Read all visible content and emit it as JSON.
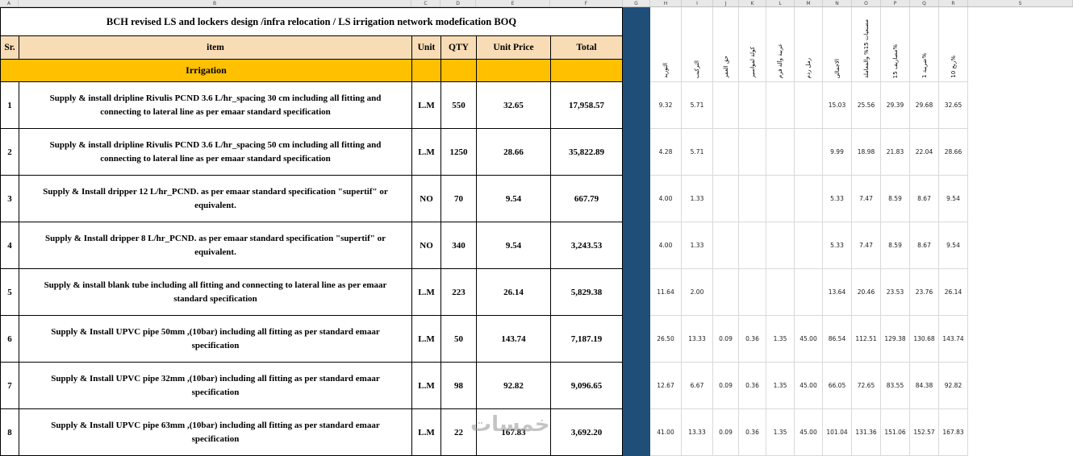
{
  "sheet": {
    "column_letters": [
      "A",
      "B",
      "C",
      "D",
      "E",
      "F",
      "G",
      "H",
      "I",
      "J",
      "K",
      "L",
      "M",
      "N",
      "O",
      "P",
      "Q",
      "R",
      "S"
    ],
    "title": "BCH revised LS and lockers design /infra relocation /  LS irrigation network modefication BOQ",
    "columns": {
      "sr": "Sr.",
      "item": "item",
      "unit": "Unit",
      "qty": "QTY",
      "unit_price": "Unit Price",
      "total": "Total"
    },
    "section_label": "Irrigation",
    "breakdown_headers": [
      "التوريد",
      "التركيب",
      "حق العمر",
      "كولة لمواسير",
      "عربية وآلة فرم",
      "رمل ردم",
      "الاجمالى",
      "مصنعيات 15% والمعاملة",
      "مصاريف 15%",
      "ضريبة 1%",
      "ربح 10%"
    ],
    "rows": [
      {
        "sr": "1",
        "item": "Supply & install  dripline  Rivulis PCND  3.6 L/hr_spacing 30 cm including all fitting and connecting to lateral line as per  emaar standard specification",
        "unit": "L.M",
        "qty": "550",
        "unit_price": "32.65",
        "total": "17,958.57",
        "breakdown": [
          "9.32",
          "5.71",
          "",
          "",
          "",
          "",
          "15.03",
          "25.56",
          "29.39",
          "29.68",
          "32.65"
        ]
      },
      {
        "sr": "2",
        "item": "Supply & install  dripline  Rivulis PCND  3.6 L/hr_spacing 50 cm including all fitting and connecting to lateral line as per  emaar standard specification",
        "unit": "L.M",
        "qty": "1250",
        "unit_price": "28.66",
        "total": "35,822.89",
        "breakdown": [
          "4.28",
          "5.71",
          "",
          "",
          "",
          "",
          "9.99",
          "18.98",
          "21.83",
          "22.04",
          "28.66"
        ]
      },
      {
        "sr": "3",
        "item": "Supply & Install dripper 12 L/hr_PCND. as per emaar standard specification \"supertif\" or equivalent.",
        "unit": "NO",
        "qty": "70",
        "unit_price": "9.54",
        "total": "667.79",
        "breakdown": [
          "4.00",
          "1.33",
          "",
          "",
          "",
          "",
          "5.33",
          "7.47",
          "8.59",
          "8.67",
          "9.54"
        ]
      },
      {
        "sr": "4",
        "item": "Supply & Install dripper 8 L/hr_PCND. as per emaar standard specification \"supertif\" or equivalent.",
        "unit": "NO",
        "qty": "340",
        "unit_price": "9.54",
        "total": "3,243.53",
        "breakdown": [
          "4.00",
          "1.33",
          "",
          "",
          "",
          "",
          "5.33",
          "7.47",
          "8.59",
          "8.67",
          "9.54"
        ]
      },
      {
        "sr": "5",
        "item": "Supply & install  blank tube  including all fitting and connecting to lateral line as per emaar standard specification",
        "unit": "L.M",
        "qty": "223",
        "unit_price": "26.14",
        "total": "5,829.38",
        "breakdown": [
          "11.64",
          "2.00",
          "",
          "",
          "",
          "",
          "13.64",
          "20.46",
          "23.53",
          "23.76",
          "26.14"
        ]
      },
      {
        "sr": "6",
        "item": "Supply & Install UPVC pipe 50mm ,(10bar) including all fitting as per standard emaar specification",
        "unit": "L.M",
        "qty": "50",
        "unit_price": "143.74",
        "total": "7,187.19",
        "breakdown": [
          "26.50",
          "13.33",
          "0.09",
          "0.36",
          "1.35",
          "45.00",
          "86.54",
          "112.51",
          "129.38",
          "130.68",
          "143.74"
        ]
      },
      {
        "sr": "7",
        "item": "Supply & Install UPVC pipe 32mm ,(10bar) including all fitting as per standard emaar specification",
        "unit": "L.M",
        "qty": "98",
        "unit_price": "92.82",
        "total": "9,096.65",
        "breakdown": [
          "12.67",
          "6.67",
          "0.09",
          "0.36",
          "1.35",
          "45.00",
          "66.05",
          "72.65",
          "83.55",
          "84.38",
          "92.82"
        ]
      },
      {
        "sr": "8",
        "item": "Supply & Install UPVC pipe 63mm ,(10bar) including all fitting as per standard emaar specification",
        "unit": "L.M",
        "qty": "22",
        "unit_price": "167.83",
        "total": "3,692.20",
        "breakdown": [
          "41.00",
          "13.33",
          "0.09",
          "0.36",
          "1.35",
          "45.00",
          "101.04",
          "131.36",
          "151.06",
          "152.57",
          "167.83"
        ]
      }
    ],
    "watermark": "خمسات",
    "colors": {
      "header_bg": "#f8dcb5",
      "section_bg": "#ffc000",
      "divider_band": "#1f4e79",
      "grid_line": "#d9d9d9"
    }
  }
}
